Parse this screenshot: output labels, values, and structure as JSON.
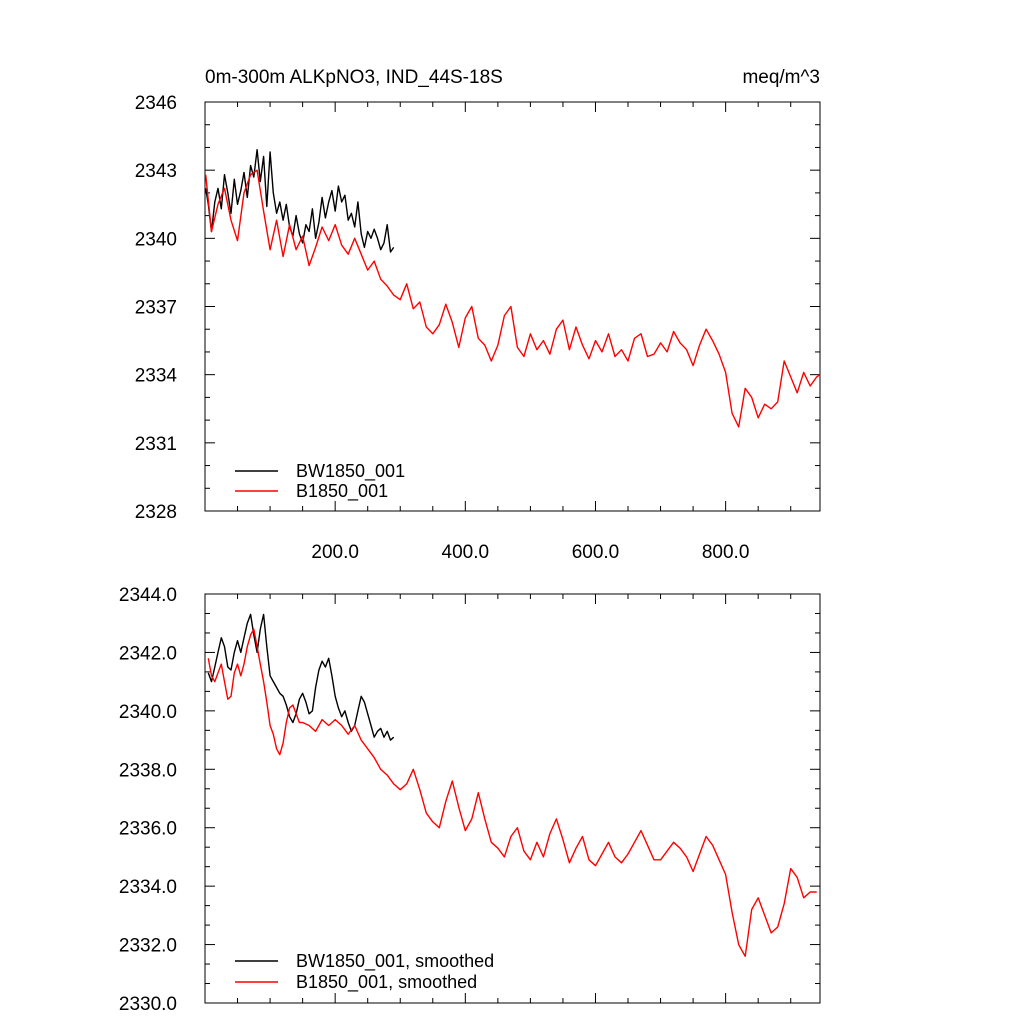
{
  "colors": {
    "bw": "#000000",
    "b": "#ff0000"
  },
  "chart_data": [
    {
      "type": "line",
      "title_left": "0m-300m ALKpNO3, IND_44S-18S",
      "title_right": "meq/m^3",
      "xlim": [
        0,
        945
      ],
      "ylim": [
        2328,
        2346
      ],
      "yticks": [
        2328,
        2331,
        2334,
        2337,
        2340,
        2343,
        2346
      ],
      "ytick_labels": [
        "2328",
        "2331",
        "2334",
        "2337",
        "2340",
        "2343",
        "2346"
      ],
      "xticks": [
        200,
        400,
        600,
        800
      ],
      "xtick_labels": [
        "200.0",
        "400.0",
        "600.0",
        "800.0"
      ],
      "legend": [
        "BW1850_001",
        "B1850_001"
      ],
      "legend_position": "bottom-left",
      "series": [
        {
          "name": "BW1850_001",
          "color": "#000000",
          "x": [
            1,
            5,
            10,
            15,
            20,
            25,
            30,
            35,
            40,
            45,
            50,
            55,
            60,
            65,
            70,
            75,
            80,
            85,
            90,
            95,
            100,
            105,
            110,
            115,
            120,
            125,
            130,
            135,
            140,
            145,
            150,
            155,
            160,
            165,
            170,
            175,
            180,
            185,
            190,
            195,
            200,
            205,
            210,
            215,
            220,
            225,
            230,
            235,
            240,
            245,
            250,
            255,
            260,
            265,
            270,
            275,
            280,
            285,
            290
          ],
          "values": [
            2342.2,
            2341.5,
            2340.3,
            2341.6,
            2342.2,
            2341.3,
            2342.8,
            2342.0,
            2341.1,
            2342.6,
            2341.5,
            2342.1,
            2342.9,
            2341.8,
            2343.2,
            2342.7,
            2343.9,
            2342.5,
            2343.6,
            2341.4,
            2343.8,
            2342.0,
            2341.1,
            2341.6,
            2340.8,
            2341.5,
            2340.5,
            2340.1,
            2341.0,
            2340.2,
            2339.8,
            2340.6,
            2340.3,
            2341.3,
            2340.0,
            2340.7,
            2341.8,
            2340.9,
            2341.6,
            2342.1,
            2341.2,
            2342.3,
            2341.6,
            2341.9,
            2340.8,
            2341.1,
            2340.5,
            2341.6,
            2340.2,
            2339.6,
            2340.3,
            2340.0,
            2340.4,
            2340.0,
            2339.5,
            2339.8,
            2340.6,
            2339.4,
            2339.6
          ]
        },
        {
          "name": "B1850_001",
          "color": "#ff0000",
          "x": [
            1,
            10,
            20,
            30,
            40,
            50,
            60,
            70,
            80,
            90,
            100,
            110,
            120,
            130,
            140,
            150,
            160,
            170,
            180,
            190,
            200,
            210,
            220,
            230,
            240,
            250,
            260,
            270,
            280,
            290,
            300,
            310,
            320,
            330,
            340,
            350,
            360,
            370,
            380,
            390,
            400,
            410,
            420,
            430,
            440,
            450,
            460,
            470,
            480,
            490,
            500,
            510,
            520,
            530,
            540,
            550,
            560,
            570,
            580,
            590,
            600,
            610,
            620,
            630,
            640,
            650,
            660,
            670,
            680,
            690,
            700,
            710,
            720,
            730,
            740,
            750,
            760,
            770,
            780,
            790,
            800,
            810,
            820,
            830,
            840,
            850,
            860,
            870,
            880,
            890,
            900,
            910,
            920,
            930,
            940,
            945
          ],
          "values": [
            2342.8,
            2340.3,
            2341.5,
            2342.2,
            2340.8,
            2339.9,
            2342.0,
            2342.8,
            2343.0,
            2341.2,
            2339.5,
            2340.8,
            2339.2,
            2340.6,
            2339.5,
            2340.1,
            2338.8,
            2339.6,
            2340.5,
            2339.9,
            2340.6,
            2339.7,
            2339.3,
            2340.0,
            2339.3,
            2338.6,
            2339.0,
            2338.2,
            2337.9,
            2337.5,
            2337.3,
            2338.0,
            2336.9,
            2337.2,
            2336.1,
            2335.8,
            2336.2,
            2337.1,
            2336.3,
            2335.2,
            2336.5,
            2337.0,
            2335.6,
            2335.3,
            2334.6,
            2335.3,
            2336.6,
            2337.0,
            2335.2,
            2334.8,
            2335.8,
            2335.1,
            2335.5,
            2334.9,
            2336.0,
            2336.4,
            2335.1,
            2336.1,
            2335.3,
            2334.7,
            2335.5,
            2335.0,
            2335.8,
            2334.8,
            2335.1,
            2334.6,
            2335.6,
            2335.8,
            2334.8,
            2334.9,
            2335.4,
            2335.0,
            2335.9,
            2335.4,
            2335.1,
            2334.4,
            2335.3,
            2336.0,
            2335.5,
            2334.9,
            2334.1,
            2332.3,
            2331.7,
            2333.4,
            2333.0,
            2332.1,
            2332.7,
            2332.5,
            2332.8,
            2334.6,
            2333.9,
            2333.2,
            2334.1,
            2333.5,
            2333.9,
            2334.0
          ]
        }
      ]
    },
    {
      "type": "line",
      "xlim": [
        0,
        945
      ],
      "ylim": [
        2330,
        2344
      ],
      "yticks": [
        2330,
        2332,
        2334,
        2336,
        2338,
        2340,
        2342,
        2344
      ],
      "ytick_labels": [
        "2330.0",
        "2332.0",
        "2334.0",
        "2336.0",
        "2338.0",
        "2340.0",
        "2342.0",
        "2344.0"
      ],
      "legend": [
        "BW1850_001, smoothed",
        "B1850_001, smoothed"
      ],
      "legend_position": "bottom-left",
      "series": [
        {
          "name": "BW1850_001, smoothed",
          "color": "#000000",
          "x": [
            5,
            10,
            15,
            20,
            25,
            30,
            35,
            40,
            45,
            50,
            55,
            60,
            65,
            70,
            75,
            80,
            85,
            90,
            95,
            100,
            105,
            110,
            115,
            120,
            125,
            130,
            135,
            140,
            145,
            150,
            155,
            160,
            165,
            170,
            175,
            180,
            185,
            190,
            195,
            200,
            205,
            210,
            215,
            220,
            225,
            230,
            235,
            240,
            245,
            250,
            255,
            260,
            265,
            270,
            275,
            280,
            285,
            290
          ],
          "values": [
            2341.3,
            2341.0,
            2341.5,
            2342.0,
            2342.5,
            2342.2,
            2341.5,
            2341.4,
            2342.0,
            2342.4,
            2342.0,
            2342.5,
            2343.0,
            2343.3,
            2342.6,
            2342.0,
            2342.8,
            2343.3,
            2342.2,
            2341.2,
            2341.0,
            2340.8,
            2340.6,
            2340.5,
            2340.2,
            2339.8,
            2339.6,
            2339.9,
            2340.4,
            2340.6,
            2340.3,
            2339.9,
            2340.0,
            2340.8,
            2341.4,
            2341.7,
            2341.5,
            2341.8,
            2341.2,
            2340.5,
            2340.1,
            2339.8,
            2340.0,
            2339.6,
            2339.3,
            2339.5,
            2340.0,
            2340.5,
            2340.3,
            2339.9,
            2339.5,
            2339.1,
            2339.3,
            2339.4,
            2339.1,
            2339.3,
            2339.0,
            2339.1
          ]
        },
        {
          "name": "B1850_001, smoothed",
          "color": "#ff0000",
          "x": [
            5,
            10,
            15,
            20,
            25,
            30,
            35,
            40,
            45,
            50,
            55,
            60,
            65,
            70,
            75,
            80,
            85,
            90,
            95,
            100,
            105,
            110,
            115,
            120,
            125,
            130,
            135,
            140,
            145,
            150,
            160,
            170,
            180,
            190,
            200,
            210,
            220,
            230,
            240,
            250,
            260,
            270,
            280,
            290,
            300,
            310,
            320,
            330,
            340,
            350,
            360,
            370,
            380,
            390,
            400,
            410,
            420,
            430,
            440,
            450,
            460,
            470,
            480,
            490,
            500,
            510,
            520,
            530,
            540,
            550,
            560,
            570,
            580,
            590,
            600,
            610,
            620,
            630,
            640,
            650,
            660,
            670,
            680,
            690,
            700,
            710,
            720,
            730,
            740,
            750,
            760,
            770,
            780,
            790,
            800,
            810,
            820,
            830,
            840,
            850,
            860,
            870,
            880,
            890,
            900,
            910,
            920,
            930,
            940
          ],
          "values": [
            2341.8,
            2341.2,
            2341.0,
            2341.3,
            2341.6,
            2341.0,
            2340.4,
            2340.5,
            2341.3,
            2341.6,
            2341.2,
            2341.6,
            2342.2,
            2342.6,
            2342.8,
            2342.2,
            2341.6,
            2341.0,
            2340.3,
            2339.5,
            2339.2,
            2338.7,
            2338.5,
            2338.9,
            2339.6,
            2340.1,
            2340.2,
            2339.9,
            2339.6,
            2339.6,
            2339.5,
            2339.3,
            2339.7,
            2339.5,
            2339.7,
            2339.5,
            2339.2,
            2339.5,
            2339.0,
            2338.7,
            2338.4,
            2338.0,
            2337.8,
            2337.5,
            2337.3,
            2337.5,
            2338.0,
            2337.3,
            2336.5,
            2336.2,
            2336.0,
            2336.9,
            2337.6,
            2336.7,
            2335.9,
            2336.3,
            2337.2,
            2336.3,
            2335.5,
            2335.3,
            2335.0,
            2335.7,
            2336.0,
            2335.2,
            2334.9,
            2335.5,
            2335.0,
            2335.8,
            2336.3,
            2335.6,
            2334.8,
            2335.3,
            2335.7,
            2334.9,
            2334.7,
            2335.1,
            2335.5,
            2335.0,
            2334.8,
            2335.1,
            2335.5,
            2335.9,
            2335.4,
            2334.9,
            2334.9,
            2335.2,
            2335.5,
            2335.3,
            2335.0,
            2334.5,
            2335.1,
            2335.7,
            2335.4,
            2334.9,
            2334.4,
            2333.1,
            2332.0,
            2331.6,
            2333.2,
            2333.6,
            2333.0,
            2332.4,
            2332.6,
            2333.4,
            2334.6,
            2334.3,
            2333.6,
            2333.8,
            2333.8
          ]
        }
      ]
    }
  ]
}
